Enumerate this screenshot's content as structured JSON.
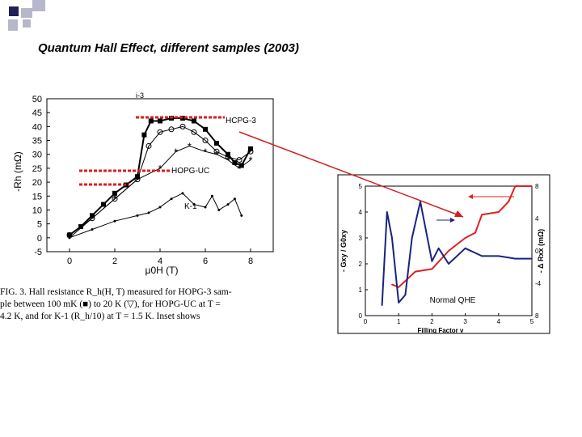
{
  "slide": {
    "title": "Quantum Hall Effect, different samples (2003)",
    "colors": {
      "dark_square": "#1f1f5a",
      "light_square": "#b7b7cc",
      "arrow": "#d02020",
      "dash": "#d82020"
    }
  },
  "caption_lines": [
    "FIG. 3.    Hall resistance R_h(H, T) measured for HOPG-3 sam-",
    "ple between 100 mK (■) to 20 K (▽), for HOPG-UC at T =",
    "4.2 K,   and   for   K-1   (R_h/10)   at   T = 1.5 K.  Inset   shows"
  ],
  "chart_data": [
    {
      "type": "scatter",
      "title": "",
      "xlabel": "μ0H (T)",
      "ylabel": "-Rh (mΩ)",
      "xlim": [
        -1,
        9
      ],
      "ylim": [
        -5,
        50
      ],
      "xticks": [
        "0",
        "2",
        "4",
        "6",
        "8"
      ],
      "yticks": [
        "-5",
        "0",
        "5",
        "10",
        "15",
        "20",
        "25",
        "30",
        "35",
        "40",
        "45",
        "50"
      ],
      "annotations": [
        "HCPG-3",
        "HOPG-UC",
        "K-1",
        "i-3"
      ],
      "series": [
        {
          "name": "HOPG-3 (100 mK)",
          "x": [
            0,
            0.5,
            1,
            1.5,
            2,
            2.5,
            3,
            3.3,
            3.6,
            4,
            4.5,
            5,
            5.5,
            6,
            6.5,
            7,
            7.3,
            7.6,
            8
          ],
          "y": [
            1,
            4,
            8,
            12,
            16,
            19,
            22,
            37,
            42,
            42,
            43,
            43,
            42,
            39,
            34,
            30,
            27,
            26,
            32
          ]
        },
        {
          "name": "HOPG-3 (20 K)",
          "x": [
            0,
            1,
            2,
            3,
            3.5,
            4,
            4.5,
            5,
            5.5,
            6,
            6.5,
            7,
            7.5,
            8
          ],
          "y": [
            1,
            7,
            14,
            21,
            33,
            38,
            39,
            40,
            38,
            35,
            31,
            29,
            28,
            31
          ]
        },
        {
          "name": "HOPG-UC",
          "x": [
            0,
            1,
            2,
            3,
            4,
            4.7,
            5.3,
            6,
            6.5,
            7,
            7.5,
            8
          ],
          "y": [
            0,
            7,
            14,
            21,
            25,
            31,
            33,
            31,
            30,
            28,
            25,
            28
          ]
        },
        {
          "name": "K-1",
          "x": [
            0,
            1,
            2,
            3,
            3.5,
            4,
            4.5,
            5,
            5.5,
            6,
            6.3,
            6.6,
            7,
            7.3,
            7.6
          ],
          "y": [
            0,
            3,
            6,
            8,
            9,
            11,
            14,
            16,
            12,
            11,
            15,
            10,
            12,
            14,
            8
          ]
        }
      ]
    },
    {
      "type": "line",
      "title": "Normal QHE",
      "xlabel": "Filling Factor ν",
      "ylabel_left": "- Gxy / G0xy",
      "ylabel_right": "- Δ Rxx (mΩ)",
      "xlim": [
        0,
        5
      ],
      "ylim_left": [
        0,
        5
      ],
      "ylim_right": [
        -8,
        8
      ],
      "xticks": [
        "0",
        "1",
        "2",
        "3",
        "4",
        "5"
      ],
      "yticks_left": [
        "0",
        "1",
        "2",
        "3",
        "4",
        "5"
      ],
      "yticks_right": [
        "8",
        "4",
        "0",
        "-4",
        "8"
      ],
      "series": [
        {
          "name": "- Gxy / G0xy",
          "color": "#e02020",
          "x": [
            0.8,
            1.0,
            1.5,
            2.0,
            2.5,
            3.0,
            3.3,
            3.5,
            4.0,
            4.3,
            4.5,
            5.0
          ],
          "y": [
            1.2,
            1.1,
            1.7,
            1.8,
            2.5,
            3.0,
            3.2,
            3.9,
            4.0,
            4.4,
            5.0,
            5.0
          ]
        },
        {
          "name": "- Δ Rxx",
          "color": "#1a237e",
          "x": [
            0.5,
            0.65,
            0.8,
            1.0,
            1.2,
            1.4,
            1.65,
            2.0,
            2.2,
            2.5,
            3.0,
            3.5,
            4.0,
            4.5,
            5.0
          ],
          "y": [
            0.4,
            4.0,
            3.0,
            0.5,
            0.8,
            3.0,
            4.4,
            2.1,
            2.6,
            2.0,
            2.6,
            2.3,
            2.3,
            2.2,
            2.2
          ]
        }
      ]
    }
  ]
}
